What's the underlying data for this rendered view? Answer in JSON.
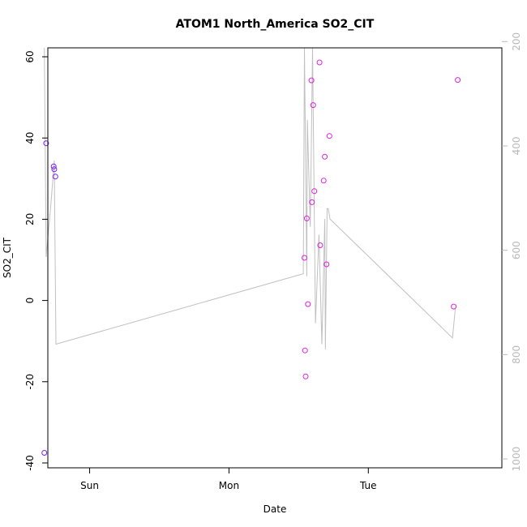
{
  "chart_data": {
    "type": "scatter",
    "title": "ATOM1 North_America SO2_CIT",
    "xlabel": "Date",
    "ylabel": "SO2_CIT",
    "x_unit": "hours",
    "xlim": [
      -7.2,
      71.0
    ],
    "ylim": [
      -41.2,
      62.2
    ],
    "y2lim": [
      1017,
      212
    ],
    "y2_reversed": true,
    "x_ticks": [
      {
        "value": 0,
        "label": "Sun"
      },
      {
        "value": 24,
        "label": "Mon"
      },
      {
        "value": 48,
        "label": "Tue"
      }
    ],
    "y_ticks": [
      {
        "value": -40,
        "label": "-40"
      },
      {
        "value": -20,
        "label": "-20"
      },
      {
        "value": 0,
        "label": "0"
      },
      {
        "value": 20,
        "label": "20"
      },
      {
        "value": 40,
        "label": "40"
      },
      {
        "value": 60,
        "label": "60"
      }
    ],
    "y2_ticks": [
      {
        "value": 200,
        "label": "200"
      },
      {
        "value": 400,
        "label": "400"
      },
      {
        "value": 600,
        "label": "600"
      },
      {
        "value": 800,
        "label": "800"
      },
      {
        "value": 1000,
        "label": "1000"
      }
    ],
    "points": [
      {
        "x": -7.8,
        "y": -37.5,
        "color": "#7a1ff0"
      },
      {
        "x": -7.5,
        "y": 38.7,
        "color": "#7a1ff0"
      },
      {
        "x": -6.2,
        "y": 33.0,
        "color": "#7a1ff0"
      },
      {
        "x": -6.1,
        "y": 32.3,
        "color": "#7a1ff0"
      },
      {
        "x": -5.9,
        "y": 30.5,
        "color": "#7a1ff0"
      },
      {
        "x": 37.0,
        "y": 10.5,
        "color": "#e020e0"
      },
      {
        "x": 37.1,
        "y": -12.3,
        "color": "#e020e0"
      },
      {
        "x": 37.2,
        "y": -18.7,
        "color": "#e020e0"
      },
      {
        "x": 37.4,
        "y": 20.2,
        "color": "#e020e0"
      },
      {
        "x": 37.6,
        "y": -0.9,
        "color": "#e020e0"
      },
      {
        "x": 38.2,
        "y": 54.2,
        "color": "#e020e0"
      },
      {
        "x": 38.3,
        "y": 24.2,
        "color": "#e020e0"
      },
      {
        "x": 38.5,
        "y": 48.1,
        "color": "#e020e0"
      },
      {
        "x": 38.7,
        "y": 26.9,
        "color": "#e020e0"
      },
      {
        "x": 39.6,
        "y": 58.6,
        "color": "#e020e0"
      },
      {
        "x": 39.7,
        "y": 13.6,
        "color": "#e020e0"
      },
      {
        "x": 40.3,
        "y": 29.5,
        "color": "#e020e0"
      },
      {
        "x": 40.5,
        "y": 35.4,
        "color": "#e020e0"
      },
      {
        "x": 40.8,
        "y": 8.9,
        "color": "#e020e0"
      },
      {
        "x": 41.3,
        "y": 40.5,
        "color": "#e020e0"
      },
      {
        "x": 62.7,
        "y": -1.5,
        "color": "#e020e0"
      },
      {
        "x": 63.4,
        "y": 54.3,
        "color": "#e020e0"
      }
    ],
    "pressure_line": {
      "color": "#c0c0c0",
      "x": [
        -7.8,
        -7.5,
        -6.6,
        -6.1,
        -5.8,
        36.8,
        37.0,
        37.4,
        37.5,
        38.0,
        38.4,
        38.9,
        39.5,
        40.0,
        40.5,
        40.6,
        40.9,
        41.1,
        41.4,
        62.5,
        63.0
      ],
      "y": [
        212,
        613,
        502,
        428,
        780,
        645,
        212,
        650,
        350,
        555,
        212,
        740,
        570,
        780,
        540,
        790,
        520,
        520,
        540,
        768,
        710
      ]
    }
  }
}
